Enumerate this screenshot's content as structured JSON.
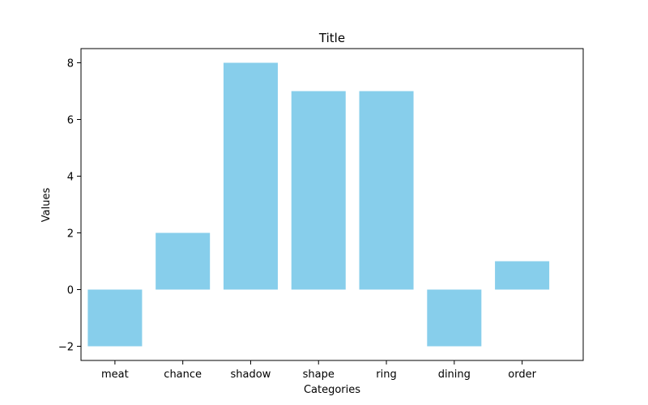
{
  "chart_data": {
    "type": "bar",
    "title": "Title",
    "xlabel": "Categories",
    "ylabel": "Values",
    "categories": [
      "meat",
      "chance",
      "shadow",
      "shape",
      "ring",
      "dining",
      "order"
    ],
    "values": [
      -2,
      2,
      8,
      7,
      7,
      -2,
      1
    ],
    "ylim": [
      -2.5,
      8.5
    ],
    "yticks": [
      -2,
      0,
      2,
      4,
      6,
      8
    ],
    "ytick_labels": [
      "−2",
      "0",
      "2",
      "4",
      "6",
      "8"
    ],
    "bar_color": "#87ceeb",
    "grid": false,
    "legend": "none"
  }
}
